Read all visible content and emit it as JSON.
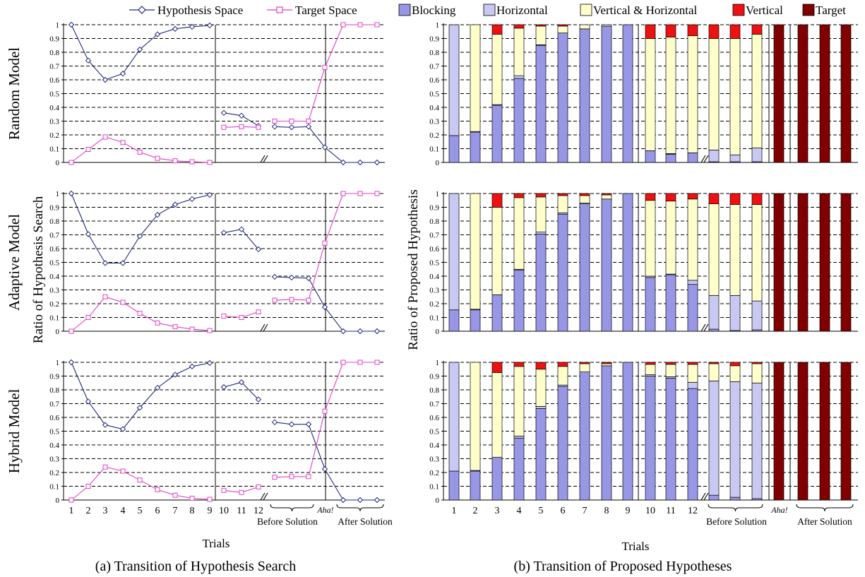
{
  "legend": [
    {
      "label": "Hypothesis Space",
      "kind": "line",
      "color": "#1f2a7a",
      "marker": "diamond"
    },
    {
      "label": "Target Space",
      "kind": "line",
      "color": "#e040c8",
      "marker": "square"
    },
    {
      "label": "Blocking",
      "kind": "box",
      "color": "#9797e6"
    },
    {
      "label": "Horizontal",
      "kind": "box",
      "color": "#c8c8f2"
    },
    {
      "label": "Vertical & Horizontal",
      "kind": "box",
      "color": "#ffffcc"
    },
    {
      "label": "Vertical",
      "kind": "box",
      "color": "#ee1111"
    },
    {
      "label": "Target",
      "kind": "box",
      "color": "#800000"
    }
  ],
  "captions": {
    "a": "(a) Transition of Hypothesis Search",
    "b": "(b) Transition of Proposed Hypotheses"
  },
  "axes": {
    "left_ylabel": "Ratio of Hypothesis Search",
    "right_ylabel": "Ratio of Proposed Hypothesis",
    "xlabel": "Trials",
    "yticks": [
      "0",
      "0.1",
      "0.2",
      "0.3",
      "0.4",
      "0.5",
      "0.6",
      "0.7",
      "0.8",
      "0.9",
      "1"
    ],
    "xticks": [
      "1",
      "2",
      "3",
      "4",
      "5",
      "6",
      "7",
      "8",
      "9",
      "10",
      "11",
      "12"
    ],
    "group_before": "Before Solution",
    "group_after": "After Solution",
    "aha": "Aha!"
  },
  "chart_data": [
    {
      "type": "line",
      "title": "(a) Transition of Hypothesis Search",
      "ylabel": "Ratio of Hypothesis Search",
      "xlabel": "Trials",
      "ylim": [
        0,
        1
      ],
      "positions": [
        "1",
        "2",
        "3",
        "4",
        "5",
        "6",
        "7",
        "8",
        "9",
        "10",
        "11",
        "12",
        "Before Solution 1",
        "Before Solution 2",
        "Before Solution 3",
        "Aha!",
        "After Solution 1",
        "After Solution 2",
        "After Solution 3"
      ],
      "panels": [
        {
          "model": "Random Model",
          "series": [
            {
              "name": "Hypothesis Space",
              "values": [
                1.0,
                0.74,
                0.6,
                0.645,
                0.82,
                0.93,
                0.97,
                0.985,
                0.995,
                0.36,
                0.34,
                0.265,
                0.26,
                0.255,
                0.26,
                0.11,
                0.0,
                0.0,
                0.0
              ]
            },
            {
              "name": "Target Space",
              "values": [
                0.0,
                0.095,
                0.185,
                0.145,
                0.075,
                0.03,
                0.012,
                0.005,
                0.0,
                0.255,
                0.26,
                0.255,
                0.3,
                0.3,
                0.3,
                0.69,
                1.0,
                1.0,
                1.0
              ]
            }
          ]
        },
        {
          "model": "Adaptive Model",
          "series": [
            {
              "name": "Hypothesis Space",
              "values": [
                1.0,
                0.705,
                0.495,
                0.495,
                0.69,
                0.845,
                0.92,
                0.96,
                0.99,
                0.715,
                0.74,
                0.595,
                0.395,
                0.39,
                0.385,
                0.175,
                0.0,
                0.0,
                0.0
              ]
            },
            {
              "name": "Target Space",
              "values": [
                0.0,
                0.1,
                0.25,
                0.21,
                0.13,
                0.06,
                0.033,
                0.015,
                0.005,
                0.11,
                0.1,
                0.14,
                0.225,
                0.23,
                0.225,
                0.64,
                1.0,
                1.0,
                1.0
              ]
            }
          ]
        },
        {
          "model": "Hybrid Model",
          "series": [
            {
              "name": "Hypothesis Space",
              "values": [
                1.0,
                0.715,
                0.545,
                0.515,
                0.67,
                0.815,
                0.91,
                0.97,
                0.995,
                0.82,
                0.855,
                0.73,
                0.565,
                0.55,
                0.55,
                0.225,
                0.0,
                0.0,
                0.0
              ]
            },
            {
              "name": "Target Space",
              "values": [
                0.0,
                0.1,
                0.24,
                0.21,
                0.145,
                0.075,
                0.035,
                0.013,
                0.005,
                0.07,
                0.055,
                0.095,
                0.165,
                0.17,
                0.17,
                0.645,
                1.0,
                1.0,
                1.0
              ]
            }
          ]
        }
      ]
    },
    {
      "type": "bar",
      "title": "(b) Transition of Proposed Hypotheses",
      "ylabel": "Ratio of Proposed Hypothesis",
      "xlabel": "Trials",
      "ylim": [
        0,
        1
      ],
      "stacked": true,
      "series_order": [
        "Blocking",
        "Horizontal",
        "Vertical & Horizontal",
        "Vertical",
        "Target"
      ],
      "positions": [
        "1",
        "2",
        "3",
        "4",
        "5",
        "6",
        "7",
        "8",
        "9",
        "10",
        "11",
        "12",
        "Before Solution 1",
        "Before Solution 2",
        "Before Solution 3",
        "Aha!",
        "After Solution 1",
        "After Solution 2",
        "After Solution 3"
      ],
      "panels": [
        {
          "model": "Random Model",
          "bars": [
            [
              0.195,
              0.805,
              0,
              0,
              0
            ],
            [
              0.22,
              0.005,
              0.775,
              0,
              0
            ],
            [
              0.415,
              0.005,
              0.51,
              0.07,
              0
            ],
            [
              0.61,
              0.02,
              0.345,
              0.025,
              0
            ],
            [
              0.85,
              0.005,
              0.135,
              0.01,
              0
            ],
            [
              0.94,
              0,
              0.05,
              0.01,
              0
            ],
            [
              0.97,
              0,
              0.03,
              0,
              0
            ],
            [
              0.99,
              0,
              0.01,
              0,
              0
            ],
            [
              1.0,
              0,
              0,
              0,
              0
            ],
            [
              0.085,
              0,
              0.815,
              0.1,
              0
            ],
            [
              0.06,
              0.005,
              0.845,
              0.09,
              0
            ],
            [
              0.07,
              0,
              0.85,
              0.08,
              0
            ],
            [
              0.005,
              0.085,
              0.81,
              0.1,
              0
            ],
            [
              0.005,
              0.05,
              0.845,
              0.1,
              0
            ],
            [
              0.005,
              0.1,
              0.825,
              0.07,
              0
            ],
            [
              0,
              0,
              0,
              0,
              1.0
            ],
            [
              0,
              0,
              0,
              0,
              1.0
            ],
            [
              0,
              0,
              0,
              0,
              1.0
            ],
            [
              0,
              0,
              0,
              0,
              1.0
            ]
          ]
        },
        {
          "model": "Adaptive Model",
          "bars": [
            [
              0.155,
              0.845,
              0,
              0,
              0
            ],
            [
              0.155,
              0.005,
              0.84,
              0,
              0
            ],
            [
              0.265,
              0,
              0.635,
              0.1,
              0
            ],
            [
              0.445,
              0.005,
              0.52,
              0.03,
              0
            ],
            [
              0.705,
              0.015,
              0.255,
              0.025,
              0
            ],
            [
              0.85,
              0.01,
              0.125,
              0.015,
              0
            ],
            [
              0.925,
              0.005,
              0.055,
              0.015,
              0
            ],
            [
              0.96,
              0,
              0.03,
              0.01,
              0
            ],
            [
              1.0,
              0,
              0,
              0,
              0
            ],
            [
              0.39,
              0.01,
              0.55,
              0.05,
              0
            ],
            [
              0.41,
              0.005,
              0.53,
              0.055,
              0
            ],
            [
              0.34,
              0.03,
              0.59,
              0.04,
              0
            ],
            [
              0.015,
              0.245,
              0.665,
              0.075,
              0
            ],
            [
              0.005,
              0.255,
              0.66,
              0.08,
              0
            ],
            [
              0.01,
              0.21,
              0.7,
              0.08,
              0
            ],
            [
              0,
              0,
              0,
              0,
              1.0
            ],
            [
              0,
              0,
              0,
              0,
              1.0
            ],
            [
              0,
              0,
              0,
              0,
              1.0
            ],
            [
              0,
              0,
              0,
              0,
              1.0
            ]
          ]
        },
        {
          "model": "Hybrid Model",
          "bars": [
            [
              0.21,
              0.79,
              0,
              0,
              0
            ],
            [
              0.21,
              0.005,
              0.785,
              0,
              0
            ],
            [
              0.31,
              0,
              0.615,
              0.075,
              0
            ],
            [
              0.45,
              0.015,
              0.505,
              0.03,
              0
            ],
            [
              0.665,
              0.015,
              0.27,
              0.05,
              0
            ],
            [
              0.825,
              0.01,
              0.135,
              0.03,
              0
            ],
            [
              0.93,
              0,
              0.06,
              0.01,
              0
            ],
            [
              0.975,
              0,
              0.015,
              0.01,
              0
            ],
            [
              1.0,
              0,
              0,
              0,
              0
            ],
            [
              0.9,
              0.01,
              0.075,
              0.015,
              0
            ],
            [
              0.885,
              0.01,
              0.09,
              0.015,
              0
            ],
            [
              0.81,
              0.045,
              0.13,
              0.015,
              0
            ],
            [
              0.035,
              0.83,
              0.125,
              0.01,
              0
            ],
            [
              0.02,
              0.84,
              0.115,
              0.025,
              0
            ],
            [
              0.01,
              0.84,
              0.14,
              0.01,
              0
            ],
            [
              0,
              0,
              0,
              0,
              1.0
            ],
            [
              0,
              0,
              0,
              0,
              1.0
            ],
            [
              0,
              0,
              0,
              0,
              1.0
            ],
            [
              0,
              0,
              0,
              0,
              1.0
            ]
          ]
        }
      ]
    }
  ]
}
